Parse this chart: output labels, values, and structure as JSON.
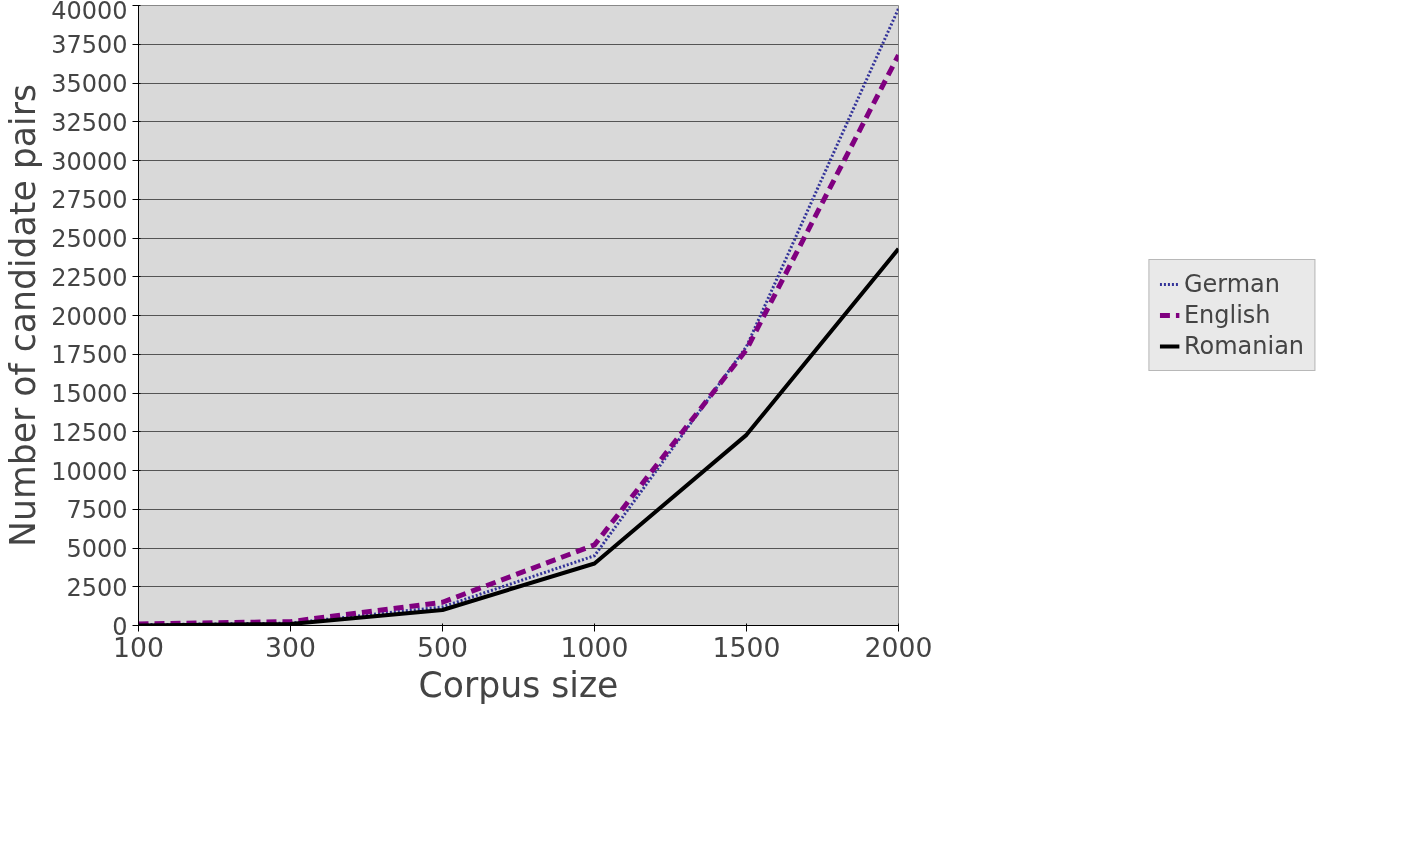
{
  "chart_data": {
    "type": "line",
    "xlabel": "Corpus size",
    "ylabel": "Number of candidate pairs",
    "categories": [
      "100",
      "300",
      "500",
      "1000",
      "1500",
      "2000"
    ],
    "series": [
      {
        "name": "German",
        "color": "#333399",
        "line_style": "dotted",
        "values": [
          50,
          150,
          1200,
          4500,
          18000,
          39800
        ]
      },
      {
        "name": "English",
        "color": "#800080",
        "line_style": "dashed",
        "values": [
          100,
          250,
          1500,
          5200,
          17800,
          36800
        ]
      },
      {
        "name": "Romanian",
        "color": "#000000",
        "line_style": "solid",
        "values": [
          0,
          100,
          1000,
          4000,
          12300,
          24300
        ]
      }
    ],
    "ylim": [
      0,
      40000
    ],
    "yticks": [
      0,
      2500,
      5000,
      7500,
      10000,
      12500,
      15000,
      17500,
      20000,
      22500,
      25000,
      27500,
      30000,
      32500,
      35000,
      37500,
      40000
    ],
    "grid": "y",
    "legend": "right"
  }
}
